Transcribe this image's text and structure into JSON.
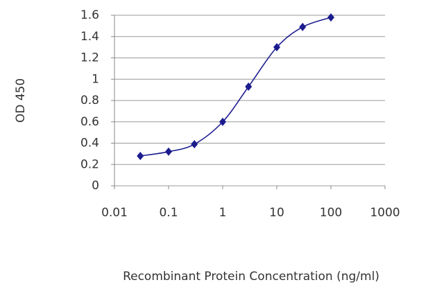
{
  "chart_data": {
    "type": "line",
    "y_label": "OD 450",
    "x_label": "Recombinant Protein Concentration (ng/ml)",
    "x": [
      0.03,
      0.1,
      0.3,
      1,
      3,
      10,
      30,
      100
    ],
    "values": [
      0.28,
      0.32,
      0.39,
      0.6,
      0.93,
      1.3,
      1.49,
      1.58
    ],
    "color": "#1c1c8f",
    "marker": "diamond",
    "log_x": true,
    "grid": true,
    "xlim": [
      0.01,
      1000
    ],
    "xticks": [
      0.01,
      0.1,
      1,
      10,
      100,
      1000
    ],
    "ylim": [
      0,
      1.6
    ],
    "yticks": [
      0,
      0.2,
      0.4,
      0.6,
      0.8,
      1,
      1.2,
      1.4,
      1.6
    ]
  }
}
